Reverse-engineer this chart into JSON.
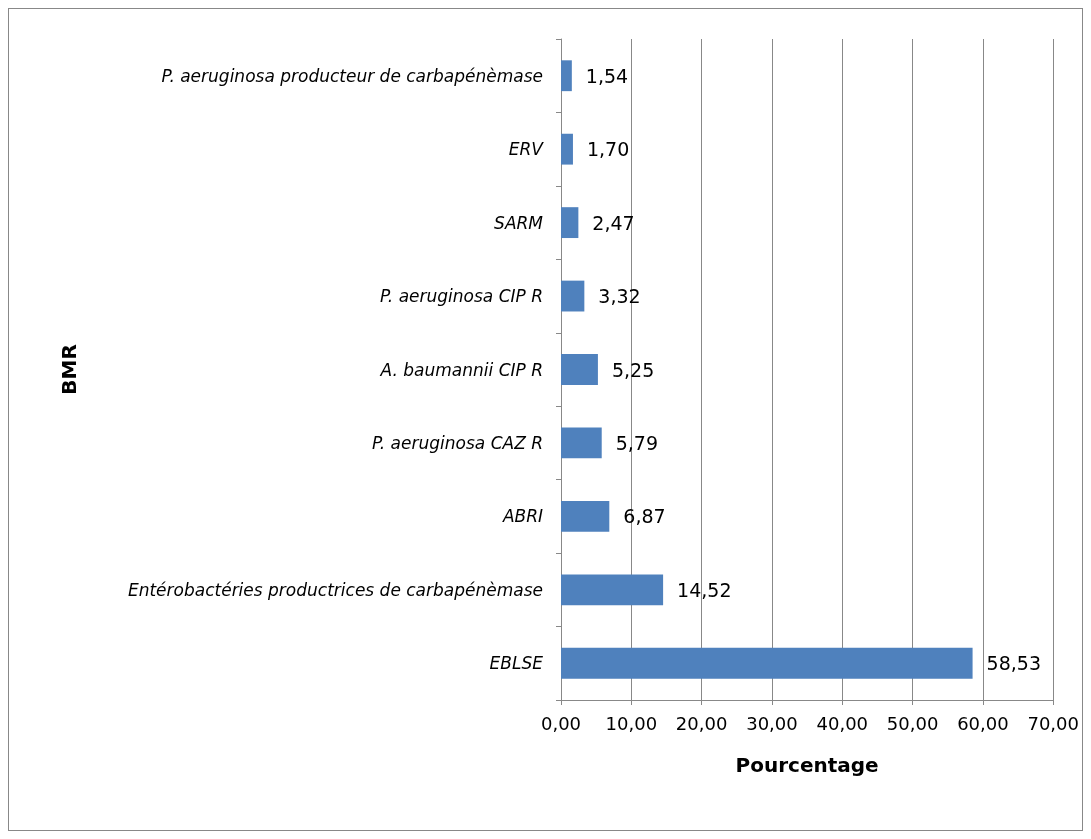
{
  "chart_data": {
    "type": "bar",
    "orientation": "horizontal",
    "xlabel": "Pourcentage",
    "ylabel": "BMR",
    "categories": [
      "P. aeruginosa producteur de carbapénèmase",
      "ERV",
      "SARM",
      "P. aeruginosa CIP R",
      "A. baumannii CIP R",
      "P. aeruginosa CAZ R",
      "ABRI",
      "Entérobactéries productrices de carbapénèmase",
      "EBLSE"
    ],
    "values": [
      1.54,
      1.7,
      2.47,
      3.32,
      5.25,
      5.79,
      6.87,
      14.52,
      58.53
    ],
    "value_labels": [
      "1,54",
      "1,70",
      "2,47",
      "3,32",
      "5,25",
      "5,79",
      "6,87",
      "14,52",
      "58,53"
    ],
    "color": "#4f81bd",
    "xlim": [
      0,
      70
    ],
    "xticks": [
      {
        "value": 0,
        "label": "0,00"
      },
      {
        "value": 10,
        "label": "10,00"
      },
      {
        "value": 20,
        "label": "20,00"
      },
      {
        "value": 30,
        "label": "30,00"
      },
      {
        "value": 40,
        "label": "40,00"
      },
      {
        "value": 50,
        "label": "50,00"
      },
      {
        "value": 60,
        "label": "60,00"
      },
      {
        "value": 70,
        "label": "70,00"
      }
    ],
    "grid": "x"
  }
}
